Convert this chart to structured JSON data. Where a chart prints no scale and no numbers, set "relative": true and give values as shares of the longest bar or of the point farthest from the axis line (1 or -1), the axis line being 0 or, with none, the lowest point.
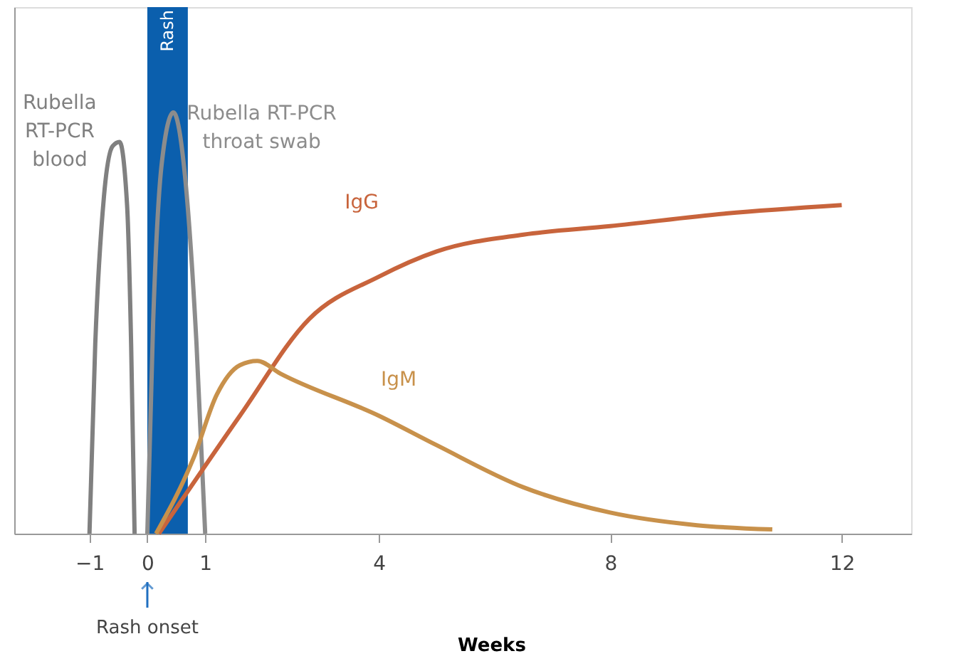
{
  "chart_data": {
    "type": "line",
    "relative": true,
    "xlabel": "Weeks",
    "xlim": [
      -2.3,
      13.2
    ],
    "xticks": [
      -1,
      0,
      1,
      4,
      8,
      12
    ],
    "series": [
      {
        "name": "Rubella RT-PCR blood",
        "color": "#808080",
        "x": [
          -1,
          -0.9,
          -0.75,
          -0.6,
          -0.48,
          -0.35,
          -0.28,
          -0.22
        ],
        "values": [
          0,
          0.45,
          0.8,
          0.92,
          0.93,
          0.78,
          0.45,
          0
        ]
      },
      {
        "name": "Rubella RT-PCR throat swab",
        "color": "#8c8c8c",
        "x": [
          0,
          0.1,
          0.25,
          0.45,
          0.65,
          0.85,
          1.0
        ],
        "values": [
          0,
          0.5,
          0.88,
          1,
          0.85,
          0.45,
          0
        ]
      },
      {
        "name": "IgG",
        "color": "#c8643c",
        "x": [
          0.2,
          1.6,
          2.8,
          4,
          5,
          6.5,
          8,
          10,
          12
        ],
        "values": [
          0,
          0.28,
          0.51,
          0.61,
          0.67,
          0.71,
          0.73,
          0.76,
          0.78
        ]
      },
      {
        "name": "IgM",
        "color": "#c8914b",
        "x": [
          0.15,
          0.8,
          1.2,
          1.6,
          1.9,
          2.3,
          4,
          5,
          6.5,
          8,
          9.5,
          10.8
        ],
        "values": [
          0,
          0.18,
          0.33,
          0.4,
          0.41,
          0.38,
          0.28,
          0.21,
          0.11,
          0.05,
          0.02,
          0.01
        ]
      }
    ],
    "bands": [
      {
        "axis": "x",
        "from": 0,
        "to": 0.7,
        "label": "Rash",
        "color": "#0b5fad"
      }
    ],
    "annotations": [
      {
        "text": "Rash onset",
        "x": 0
      }
    ],
    "grid": false
  }
}
